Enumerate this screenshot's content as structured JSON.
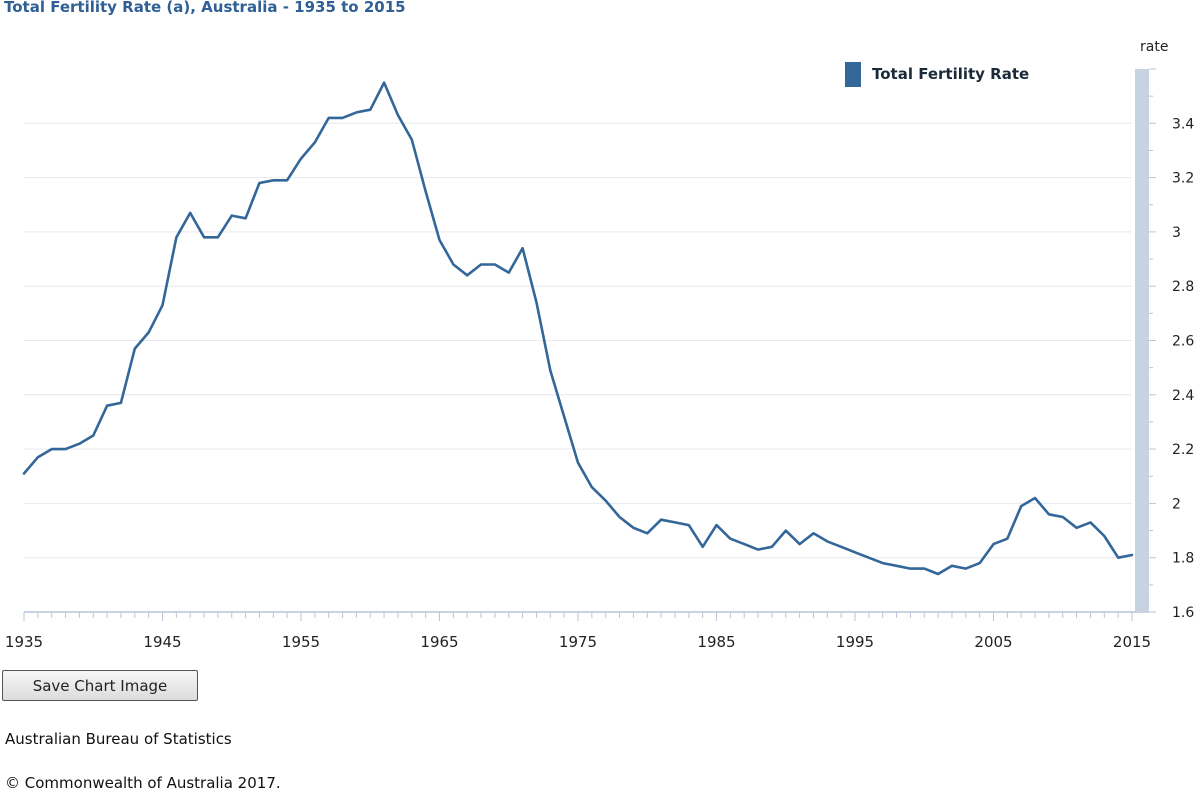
{
  "page": {
    "title": "Total Fertility Rate (a),  Australia - 1935 to 2015",
    "save_button": "Save Chart Image",
    "source": "Australian Bureau of Statistics",
    "copyright": "© Commonwealth of Australia 2017."
  },
  "colors": {
    "line": "#336699",
    "title": "#2f5f94",
    "axis_band": "#c7d3e1",
    "grid": "#e6e9ee"
  },
  "chart_data": {
    "type": "line",
    "title": "Total Fertility Rate (a),  Australia - 1935 to 2015",
    "xlabel": "",
    "ylabel": "rate",
    "xlim": [
      1935,
      2015
    ],
    "ylim": [
      1.6,
      3.6
    ],
    "x_ticks": [
      1935,
      1945,
      1955,
      1965,
      1975,
      1985,
      1995,
      2005,
      2015
    ],
    "y_ticks": [
      1.6,
      1.8,
      2,
      2.2,
      2.4,
      2.6,
      2.8,
      3,
      3.2,
      3.4
    ],
    "y_axis_position": "right",
    "grid": true,
    "legend_position": "top-right",
    "series": [
      {
        "name": "Total Fertility Rate",
        "x": [
          1935,
          1936,
          1937,
          1938,
          1939,
          1940,
          1941,
          1942,
          1943,
          1944,
          1945,
          1946,
          1947,
          1948,
          1949,
          1950,
          1951,
          1952,
          1953,
          1954,
          1955,
          1956,
          1957,
          1958,
          1959,
          1960,
          1961,
          1962,
          1963,
          1964,
          1965,
          1966,
          1967,
          1968,
          1969,
          1970,
          1971,
          1972,
          1973,
          1974,
          1975,
          1976,
          1977,
          1978,
          1979,
          1980,
          1981,
          1982,
          1983,
          1984,
          1985,
          1986,
          1987,
          1988,
          1989,
          1990,
          1991,
          1992,
          1993,
          1994,
          1995,
          1996,
          1997,
          1998,
          1999,
          2000,
          2001,
          2002,
          2003,
          2004,
          2005,
          2006,
          2007,
          2008,
          2009,
          2010,
          2011,
          2012,
          2013,
          2014,
          2015
        ],
        "values": [
          2.11,
          2.17,
          2.2,
          2.2,
          2.22,
          2.25,
          2.36,
          2.37,
          2.57,
          2.63,
          2.73,
          2.98,
          3.07,
          2.98,
          2.98,
          3.06,
          3.05,
          3.18,
          3.19,
          3.19,
          3.27,
          3.33,
          3.42,
          3.42,
          3.44,
          3.45,
          3.55,
          3.43,
          3.34,
          3.15,
          2.97,
          2.88,
          2.84,
          2.88,
          2.88,
          2.85,
          2.94,
          2.74,
          2.49,
          2.32,
          2.15,
          2.06,
          2.01,
          1.95,
          1.91,
          1.89,
          1.94,
          1.93,
          1.92,
          1.84,
          1.92,
          1.87,
          1.85,
          1.83,
          1.84,
          1.9,
          1.85,
          1.89,
          1.86,
          1.84,
          1.82,
          1.8,
          1.78,
          1.77,
          1.76,
          1.76,
          1.74,
          1.77,
          1.76,
          1.78,
          1.85,
          1.87,
          1.99,
          2.02,
          1.96,
          1.95,
          1.91,
          1.93,
          1.88,
          1.8,
          1.81
        ]
      }
    ]
  }
}
